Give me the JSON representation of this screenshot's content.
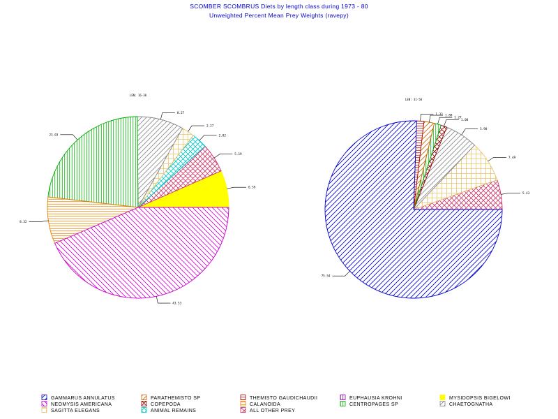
{
  "header": {
    "title": "SCOMBER SCOMBRUS Diets by length class during 1973 - 80",
    "subtitle": "Unweighted Percent Mean Prey Weights (ravepy)"
  },
  "chart_data": [
    {
      "type": "pie",
      "title": "LEN: 16-30",
      "slices": [
        {
          "name": "MYSIDOPSIS BIGELOWI",
          "value": 6.59,
          "label": "6.59"
        },
        {
          "name": "ALL OTHER PREY",
          "value": 5.19,
          "label": "5.19"
        },
        {
          "name": "ANIMAL REMAINS",
          "value": 2.82,
          "label": "2.82"
        },
        {
          "name": "SAGITTA ELEGANS",
          "value": 2.27,
          "label": "2.27"
        },
        {
          "name": "CHAETOGNATHA",
          "value": 8.27,
          "label": "8.27"
        },
        {
          "name": "CENTROPAGES SP",
          "value": 23.03,
          "label": "23.03"
        },
        {
          "name": "CALANOIDA",
          "value": 8.32,
          "label": "8.32"
        },
        {
          "name": "NEOMYSIS AMERICANA",
          "value": 43.53,
          "label": "43.53"
        }
      ]
    },
    {
      "type": "pie",
      "title": "LEN: 31-50",
      "slices": [
        {
          "name": "ALL OTHER PREY",
          "value": 5.43,
          "label": "5.43"
        },
        {
          "name": "SAGITTA ELEGANS",
          "value": 7.49,
          "label": "7.49"
        },
        {
          "name": "CHAETOGNATHA",
          "value": 5.98,
          "label": "5.98"
        },
        {
          "name": "COPEPODA",
          "value": 1.08,
          "label": "1.08"
        },
        {
          "name": "CENTROPAGES SP",
          "value": 1.27,
          "label": "1.27"
        },
        {
          "name": "PARATHEMISTO SP",
          "value": 1.88,
          "label": "1.88"
        },
        {
          "name": "THEMISTO GAUDICHAUDII",
          "value": 1.33,
          "label": "1.33"
        },
        {
          "name": "GAMMARUS ANNULATUS",
          "value": 75.54,
          "label": "75.54"
        }
      ]
    }
  ],
  "legend": [
    [
      {
        "name": "GAMMARUS ANNULATUS",
        "color": "#0000cc",
        "fill": "diag-fwd"
      },
      {
        "name": "NEOMYSIS AMERICANA",
        "color": "#cc00cc",
        "fill": "diag-back"
      },
      {
        "name": "SAGITTA ELEGANS",
        "color": "#e8c46a",
        "fill": "grid"
      }
    ],
    [
      {
        "name": "PARATHEMISTO SP",
        "color": "#c86400",
        "fill": "diag-fwd"
      },
      {
        "name": "COPEPODA",
        "color": "#8b0000",
        "fill": "crosshatch"
      },
      {
        "name": "ANIMAL REMAINS",
        "color": "#00c8c8",
        "fill": "crosshatch"
      }
    ],
    [
      {
        "name": "THEMISTO GAUDICHAUDII",
        "color": "#aa0000",
        "fill": "horiz"
      },
      {
        "name": "CALANOIDA",
        "color": "#e08000",
        "fill": "horiz"
      },
      {
        "name": "ALL OTHER PREY",
        "color": "#cc3366",
        "fill": "crosshatch"
      }
    ],
    [
      {
        "name": "EUPHAUSIA KROHNI",
        "color": "#8800aa",
        "fill": "vert"
      },
      {
        "name": "CENTROPAGES SP",
        "color": "#00aa00",
        "fill": "vert"
      },
      {
        "name": "",
        "color": "",
        "fill": ""
      }
    ],
    [
      {
        "name": "MYSIDOPSIS BIGELOWI",
        "color": "#ffff00",
        "fill": "solid"
      },
      {
        "name": "CHAETOGNATHA",
        "color": "#888888",
        "fill": "diag-fwd"
      },
      {
        "name": "",
        "color": "",
        "fill": ""
      }
    ]
  ]
}
